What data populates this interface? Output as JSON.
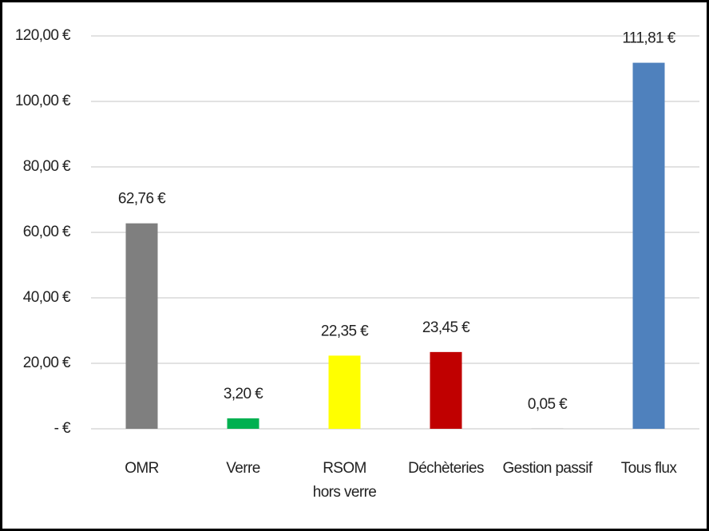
{
  "chart_data": {
    "type": "bar",
    "categories": [
      "OMR",
      "Verre",
      "RSOM\nhors verre",
      "Déchèteries",
      "Gestion passif",
      "Tous flux"
    ],
    "values": [
      62.76,
      3.2,
      22.35,
      23.45,
      0.05,
      111.81
    ],
    "value_labels": [
      "62,76 €",
      "3,20 €",
      "22,35 €",
      "23,45 €",
      "0,05 €",
      "111,81 €"
    ],
    "colors": [
      "#7f7f7f",
      "#00b050",
      "#ffff00",
      "#c00000",
      "#a5a5a5",
      "#4f81bd"
    ],
    "ylim": [
      0,
      120
    ],
    "yticks": [
      {
        "value": 0,
        "label": "-  €"
      },
      {
        "value": 20,
        "label": "20,00 €"
      },
      {
        "value": 40,
        "label": "40,00 €"
      },
      {
        "value": 60,
        "label": "60,00 €"
      },
      {
        "value": 80,
        "label": "80,00 €"
      },
      {
        "value": 100,
        "label": "100,00 €"
      },
      {
        "value": 120,
        "label": "120,00 €"
      }
    ],
    "grid": true
  }
}
